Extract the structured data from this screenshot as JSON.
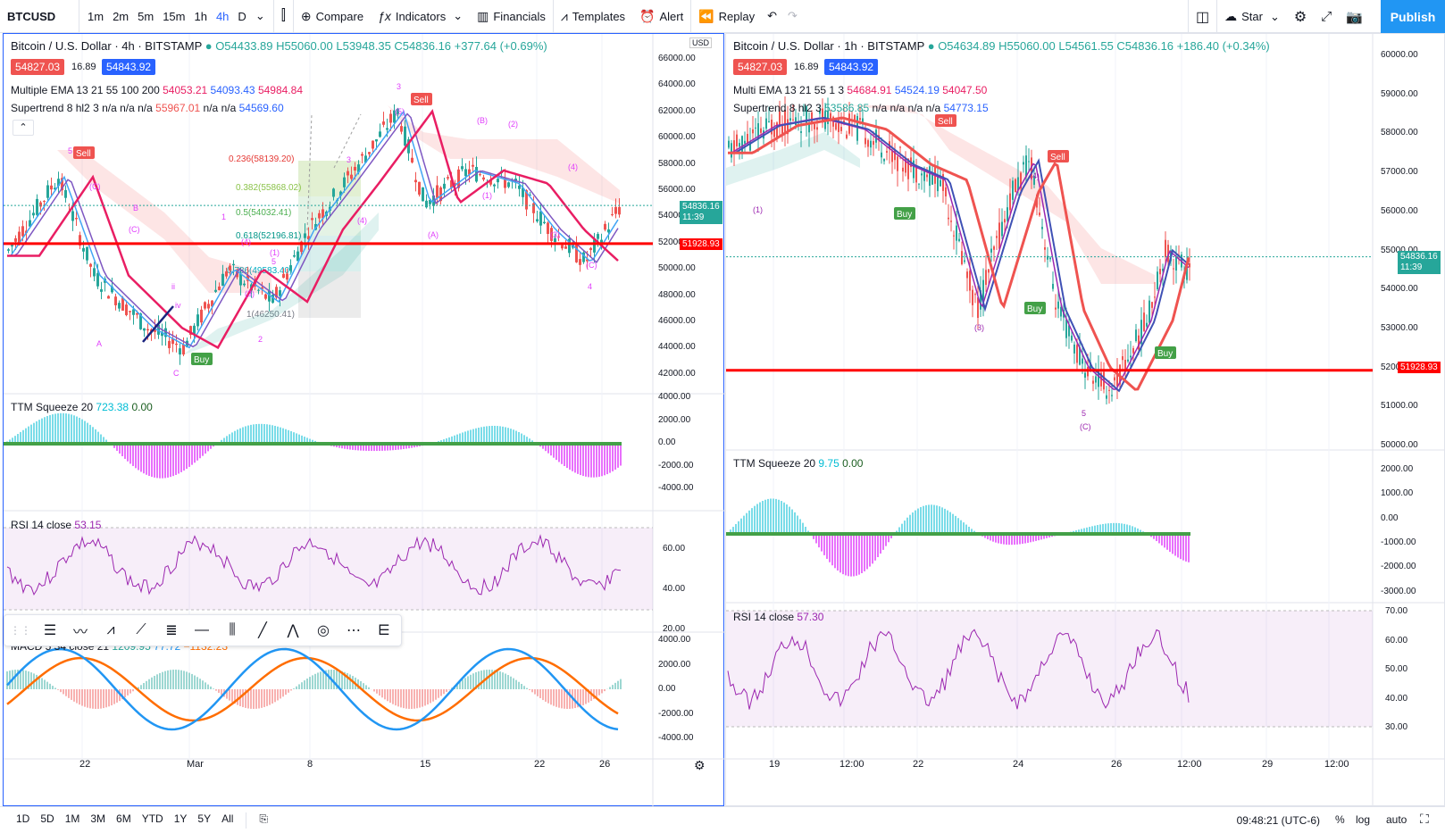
{
  "toolbar": {
    "symbol": "BTCUSD",
    "intervals": [
      "1m",
      "2m",
      "5m",
      "15m",
      "1h",
      "4h",
      "D"
    ],
    "active_interval": "4h",
    "compare": "Compare",
    "indicators": "Indicators",
    "financials": "Financials",
    "templates": "Templates",
    "alert": "Alert",
    "replay": "Replay",
    "star": "Star",
    "publish": "Publish"
  },
  "left": {
    "title": "Bitcoin / U.S. Dollar · 4h · BITSTAMP",
    "ohlc": "O54433.89 H55060.00 L53948.35 C54836.16 +377.64 (+0.69%)",
    "bid": "54827.03",
    "spread": "16.89",
    "ask": "54843.92",
    "ema_label": "Multiple EMA 13 21 55 100 200",
    "ema_v1": "54053.21",
    "ema_v2": "54093.43",
    "ema_v3": "54984.84",
    "st_label": "Supertrend 8 hl2 3  n/a n/a n/a",
    "st_v1": "55967.01",
    "st_v2": "n/a n/a",
    "st_v3": "54569.60",
    "currency": "USD",
    "price_axis": [
      "66000.00",
      "64000.00",
      "62000.00",
      "60000.00",
      "58000.00",
      "56000.00",
      "54000.00",
      "52000.00",
      "50000.00",
      "48000.00",
      "46000.00",
      "44000.00",
      "42000.00"
    ],
    "last_price": "54836.16",
    "last_time": "11:39",
    "line_price": "51928.93",
    "ttm_label": "TTM Squeeze 20",
    "ttm_v1": "723.38",
    "ttm_v2": "0.00",
    "ttm_axis": [
      "4000.00",
      "2000.00",
      "0.00",
      "-2000.00",
      "-4000.00"
    ],
    "rsi_label": "RSI 14 close",
    "rsi_v": "53.15",
    "rsi_axis": [
      "60.00",
      "40.00",
      "20.00"
    ],
    "macd_label": "MACD 5 34 close 21",
    "macd_v1": "1209.95",
    "macd_v2": "77.72",
    "macd_v3": "−1132.23",
    "macd_axis": [
      "4000.00",
      "2000.00",
      "0.00",
      "-2000.00",
      "-4000.00"
    ],
    "time_axis": [
      "22",
      "Mar",
      "8",
      "15",
      "22",
      "26"
    ],
    "fib": [
      "0.236(58139.20)",
      "0.382(55868.02)",
      "0.5(54032.41)",
      "0.618(52196.81)",
      "0.786(49583.40)",
      "1(46250.41)"
    ],
    "sell": "Sell",
    "buy": "Buy"
  },
  "right": {
    "title": "Bitcoin / U.S. Dollar · 1h · BITSTAMP",
    "ohlc": "O54634.89 H55060.00 L54561.55 C54836.16 +186.40 (+0.34%)",
    "bid": "54827.03",
    "spread": "16.89",
    "ask": "54843.92",
    "ema_label": "Multi EMA 13 21 55 1 3",
    "ema_v1": "54684.91",
    "ema_v2": "54524.19",
    "ema_v3": "54047.50",
    "st_label": "Supertrend 8 hl2 3",
    "st_v1": "53586.85",
    "st_v2": "n/a n/a n/a n/a",
    "st_v3": "54773.15",
    "price_axis": [
      "60000.00",
      "59000.00",
      "58000.00",
      "57000.00",
      "56000.00",
      "55000.00",
      "54000.00",
      "53000.00",
      "52000.00",
      "51000.00",
      "50000.00"
    ],
    "last_price": "54836.16",
    "last_time": "11:39",
    "line_price": "51928.93",
    "ttm_label": "TTM Squeeze 20",
    "ttm_v1": "9.75",
    "ttm_v2": "0.00",
    "ttm_axis": [
      "2000.00",
      "1000.00",
      "0.00",
      "-1000.00",
      "-2000.00",
      "-3000.00"
    ],
    "rsi_label": "RSI 14 close",
    "rsi_v": "57.30",
    "rsi_axis": [
      "70.00",
      "60.00",
      "50.00",
      "40.00",
      "30.00"
    ],
    "time_axis": [
      "19",
      "12:00",
      "22",
      "24",
      "26",
      "12:00",
      "29",
      "12:00"
    ],
    "sell": "Sell",
    "buy": "Buy"
  },
  "bottom": {
    "ranges": [
      "1D",
      "5D",
      "1M",
      "3M",
      "6M",
      "YTD",
      "1Y",
      "5Y",
      "All"
    ],
    "clock": "09:48:21 (UTC-6)",
    "pct": "%",
    "log": "log",
    "auto": "auto"
  },
  "colors": {
    "accent": "#2962ff",
    "up": "#26a69a",
    "down": "#ef5350",
    "line": "#ff0000",
    "publish": "#2196f3"
  }
}
